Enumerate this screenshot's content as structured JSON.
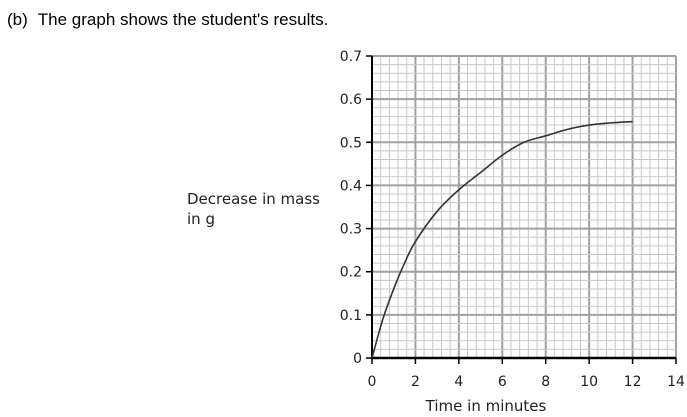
{
  "question": {
    "part": "(b)",
    "text": "The graph shows the student's results."
  },
  "chart_data": {
    "type": "line",
    "xlabel": "Time in minutes",
    "ylabel_line1": "Decrease in mass",
    "ylabel_line2": "in g",
    "xlim": [
      0,
      14
    ],
    "ylim": [
      0,
      0.7
    ],
    "x_ticks": [
      0,
      2,
      4,
      6,
      8,
      10,
      12,
      14
    ],
    "x_tick_labels": [
      "0",
      "2",
      "4",
      "6",
      "8",
      "10",
      "12",
      "14"
    ],
    "y_ticks": [
      0,
      0.1,
      0.2,
      0.3,
      0.4,
      0.5,
      0.6,
      0.7
    ],
    "y_tick_labels": [
      "0",
      "0.1",
      "0.2",
      "0.3",
      "0.4",
      "0.5",
      "0.6",
      "0.7"
    ],
    "grid": true,
    "series": [
      {
        "x": [
          0,
          0.5,
          1,
          1.5,
          2,
          3,
          4,
          5,
          6,
          7,
          8,
          9,
          10,
          11,
          12
        ],
        "y": [
          0,
          0.09,
          0.16,
          0.22,
          0.27,
          0.34,
          0.39,
          0.43,
          0.47,
          0.5,
          0.515,
          0.53,
          0.54,
          0.545,
          0.548
        ]
      }
    ],
    "colors": {
      "grid_minor": "#c8c8c8",
      "grid_major": "#a0a0a0",
      "axis": "#000000",
      "line": "#333333"
    }
  }
}
